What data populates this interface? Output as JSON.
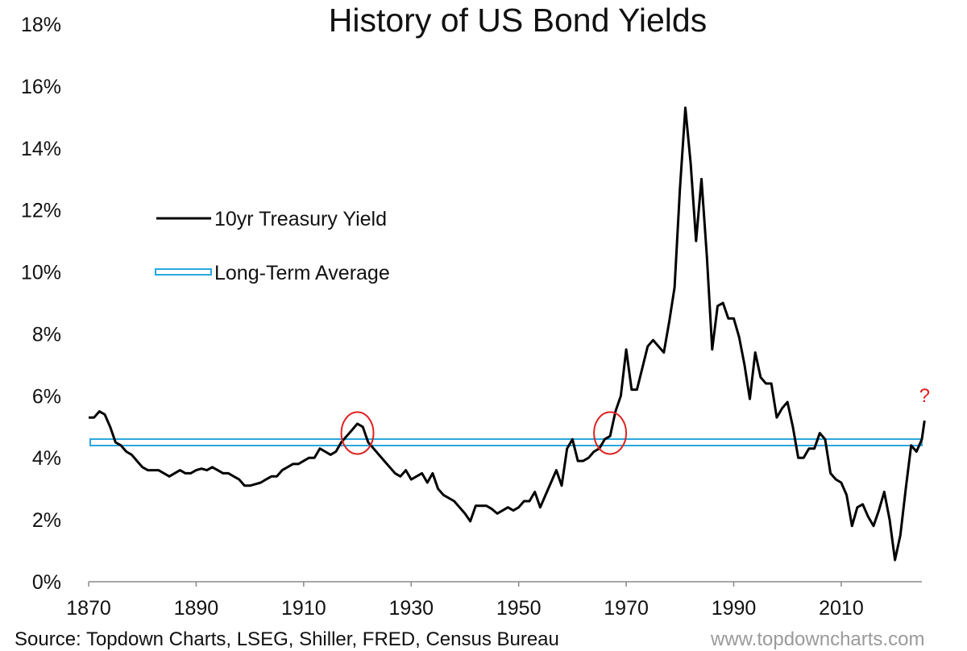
{
  "chart_data": {
    "type": "line",
    "title": "History of US Bond Yields",
    "xlim": [
      1870,
      2025
    ],
    "ylim": [
      0,
      18
    ],
    "y_unit": "%",
    "x_ticks": [
      1870,
      1890,
      1910,
      1930,
      1950,
      1970,
      1990,
      2010
    ],
    "y_ticks": [
      0,
      2,
      4,
      6,
      8,
      10,
      12,
      14,
      16,
      18
    ],
    "y_tick_labels": [
      "0%",
      "2%",
      "4%",
      "6%",
      "8%",
      "10%",
      "12%",
      "14%",
      "16%",
      "18%"
    ],
    "grid": false,
    "legend_position": "left",
    "series": [
      {
        "name": "10yr Treasury Yield",
        "color": "#000000",
        "points": [
          [
            1870,
            5.3
          ],
          [
            1871,
            5.3
          ],
          [
            1872,
            5.5
          ],
          [
            1873,
            5.4
          ],
          [
            1874,
            5.0
          ],
          [
            1875,
            4.5
          ],
          [
            1876,
            4.4
          ],
          [
            1877,
            4.2
          ],
          [
            1878,
            4.1
          ],
          [
            1879,
            3.9
          ],
          [
            1880,
            3.7
          ],
          [
            1881,
            3.6
          ],
          [
            1882,
            3.6
          ],
          [
            1883,
            3.6
          ],
          [
            1884,
            3.5
          ],
          [
            1885,
            3.4
          ],
          [
            1886,
            3.5
          ],
          [
            1887,
            3.6
          ],
          [
            1888,
            3.5
          ],
          [
            1889,
            3.5
          ],
          [
            1890,
            3.6
          ],
          [
            1891,
            3.65
          ],
          [
            1892,
            3.6
          ],
          [
            1893,
            3.7
          ],
          [
            1894,
            3.6
          ],
          [
            1895,
            3.5
          ],
          [
            1896,
            3.5
          ],
          [
            1897,
            3.4
          ],
          [
            1898,
            3.3
          ],
          [
            1899,
            3.1
          ],
          [
            1900,
            3.1
          ],
          [
            1901,
            3.15
          ],
          [
            1902,
            3.2
          ],
          [
            1903,
            3.3
          ],
          [
            1904,
            3.4
          ],
          [
            1905,
            3.4
          ],
          [
            1906,
            3.6
          ],
          [
            1907,
            3.7
          ],
          [
            1908,
            3.8
          ],
          [
            1909,
            3.8
          ],
          [
            1910,
            3.9
          ],
          [
            1911,
            4.0
          ],
          [
            1912,
            4.0
          ],
          [
            1913,
            4.3
          ],
          [
            1914,
            4.2
          ],
          [
            1915,
            4.1
          ],
          [
            1916,
            4.2
          ],
          [
            1917,
            4.5
          ],
          [
            1918,
            4.7
          ],
          [
            1919,
            4.9
          ],
          [
            1920,
            5.1
          ],
          [
            1921,
            5.0
          ],
          [
            1922,
            4.5
          ],
          [
            1923,
            4.3
          ],
          [
            1924,
            4.1
          ],
          [
            1925,
            3.9
          ],
          [
            1926,
            3.7
          ],
          [
            1927,
            3.5
          ],
          [
            1928,
            3.4
          ],
          [
            1929,
            3.6
          ],
          [
            1930,
            3.3
          ],
          [
            1931,
            3.4
          ],
          [
            1932,
            3.5
          ],
          [
            1933,
            3.2
          ],
          [
            1934,
            3.5
          ],
          [
            1935,
            3.0
          ],
          [
            1936,
            2.8
          ],
          [
            1937,
            2.7
          ],
          [
            1938,
            2.6
          ],
          [
            1939,
            2.4
          ],
          [
            1940,
            2.2
          ],
          [
            1941,
            1.95
          ],
          [
            1942,
            2.45
          ],
          [
            1943,
            2.45
          ],
          [
            1944,
            2.45
          ],
          [
            1945,
            2.35
          ],
          [
            1946,
            2.2
          ],
          [
            1947,
            2.3
          ],
          [
            1948,
            2.4
          ],
          [
            1949,
            2.3
          ],
          [
            1950,
            2.4
          ],
          [
            1951,
            2.6
          ],
          [
            1952,
            2.6
          ],
          [
            1953,
            2.9
          ],
          [
            1954,
            2.4
          ],
          [
            1955,
            2.8
          ],
          [
            1956,
            3.2
          ],
          [
            1957,
            3.6
          ],
          [
            1958,
            3.1
          ],
          [
            1959,
            4.3
          ],
          [
            1960,
            4.6
          ],
          [
            1961,
            3.9
          ],
          [
            1962,
            3.9
          ],
          [
            1963,
            4.0
          ],
          [
            1964,
            4.2
          ],
          [
            1965,
            4.3
          ],
          [
            1966,
            4.6
          ],
          [
            1967,
            4.7
          ],
          [
            1968,
            5.5
          ],
          [
            1969,
            6.0
          ],
          [
            1970,
            7.5
          ],
          [
            1971,
            6.2
          ],
          [
            1972,
            6.2
          ],
          [
            1973,
            6.9
          ],
          [
            1974,
            7.6
          ],
          [
            1975,
            7.8
          ],
          [
            1976,
            7.6
          ],
          [
            1977,
            7.4
          ],
          [
            1978,
            8.4
          ],
          [
            1979,
            9.5
          ],
          [
            1980,
            12.7
          ],
          [
            1981,
            15.3
          ],
          [
            1982,
            13.5
          ],
          [
            1983,
            11.0
          ],
          [
            1984,
            13.0
          ],
          [
            1985,
            10.5
          ],
          [
            1986,
            7.5
          ],
          [
            1987,
            8.9
          ],
          [
            1988,
            9.0
          ],
          [
            1989,
            8.5
          ],
          [
            1990,
            8.5
          ],
          [
            1991,
            7.9
          ],
          [
            1992,
            7.0
          ],
          [
            1993,
            5.9
          ],
          [
            1994,
            7.4
          ],
          [
            1995,
            6.6
          ],
          [
            1996,
            6.4
          ],
          [
            1997,
            6.4
          ],
          [
            1998,
            5.3
          ],
          [
            1999,
            5.6
          ],
          [
            2000,
            5.8
          ],
          [
            2001,
            5.0
          ],
          [
            2002,
            4.0
          ],
          [
            2003,
            4.0
          ],
          [
            2004,
            4.3
          ],
          [
            2005,
            4.3
          ],
          [
            2006,
            4.8
          ],
          [
            2007,
            4.6
          ],
          [
            2008,
            3.5
          ],
          [
            2009,
            3.3
          ],
          [
            2010,
            3.2
          ],
          [
            2011,
            2.8
          ],
          [
            2012,
            1.8
          ],
          [
            2013,
            2.4
          ],
          [
            2014,
            2.5
          ],
          [
            2015,
            2.1
          ],
          [
            2016,
            1.8
          ],
          [
            2017,
            2.3
          ],
          [
            2018,
            2.9
          ],
          [
            2019,
            2.0
          ],
          [
            2020,
            0.7
          ],
          [
            2021,
            1.5
          ],
          [
            2022,
            3.0
          ],
          [
            2023,
            4.4
          ],
          [
            2024,
            4.2
          ],
          [
            2025,
            4.6
          ],
          [
            2025.5,
            5.2
          ]
        ]
      },
      {
        "name": "Long-Term Average",
        "color": "#29a8e0",
        "style": "double-line",
        "value": 4.5
      }
    ],
    "annotations": [
      {
        "type": "circle",
        "x": 1920,
        "y": 4.8,
        "color": "#e02020"
      },
      {
        "type": "circle",
        "x": 1967,
        "y": 4.8,
        "color": "#e02020"
      },
      {
        "type": "text",
        "text": "?",
        "x": 2025.5,
        "y": 5.8,
        "color": "#e02020"
      }
    ]
  },
  "footer": {
    "source_text": "Source: Topdown Charts, LSEG, Shiller, FRED, Census Bureau",
    "watermark_text": "www.topdowncharts.com"
  }
}
